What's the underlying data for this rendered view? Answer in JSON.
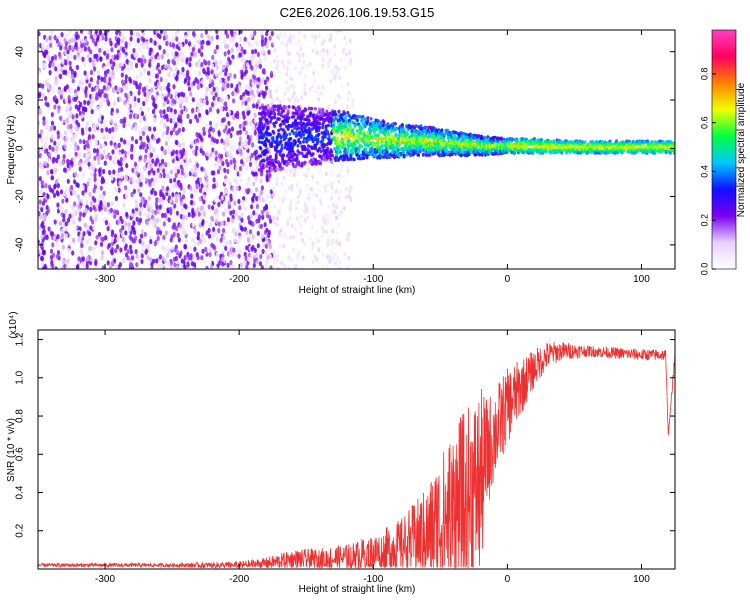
{
  "figure": {
    "title": "C2E6.2026.106.19.53.G15"
  },
  "colors": {
    "snr_line": "#ee3030",
    "axis": "#000000",
    "background": "#ffffff"
  },
  "chart_data": [
    {
      "type": "heatmap",
      "name": "spectrogram",
      "xlabel": "Height of straight line (km)",
      "ylabel": "Frequency (Hz)",
      "xlim": [
        -350,
        125
      ],
      "ylim": [
        -50,
        49
      ],
      "x_ticks": [
        -300,
        -200,
        -100,
        0,
        100
      ],
      "y_ticks": [
        -40,
        -20,
        0,
        20,
        40
      ],
      "colorbar": {
        "label": "Normalized spectral amplitude",
        "range": [
          0.0,
          0.98
        ],
        "ticks": [
          0.0,
          0.2,
          0.4,
          0.6,
          0.8
        ],
        "colormap": [
          "#ffffff",
          "#e8d0ff",
          "#7a00f0",
          "#1010ff",
          "#00c8ff",
          "#00ff40",
          "#f0ff00",
          "#ff8000",
          "#ff0060",
          "#ff40c0"
        ]
      },
      "signal_trace": {
        "description_points_height_km": [
          -180,
          -150,
          -120,
          -100,
          -80,
          -60,
          -40,
          -20,
          0,
          20,
          50,
          80,
          100,
          125
        ],
        "center_freq_hz": [
          4,
          5,
          5,
          4,
          3,
          3,
          2,
          1,
          1,
          1,
          0.5,
          0.5,
          0.5,
          0.5
        ],
        "spread_hz": [
          14,
          12,
          10,
          8,
          7,
          6,
          5,
          4,
          3,
          3,
          2.5,
          2.5,
          2.5,
          2.5
        ]
      }
    },
    {
      "type": "line",
      "name": "snr",
      "xlabel": "Height of straight line (km)",
      "ylabel": "SNR (10 * v/v)",
      "y_multiplier": "(x10⁴)",
      "xlim": [
        -350,
        125
      ],
      "ylim": [
        0,
        1.25
      ],
      "x_ticks": [
        -300,
        -200,
        -100,
        0,
        100
      ],
      "y_ticks": [
        0.2,
        0.4,
        0.6,
        0.8,
        1.0,
        1.2
      ],
      "x_tick_labels": [
        "-300",
        "-200",
        "-100",
        "0",
        "100"
      ],
      "y_tick_labels": [
        "0.2",
        "0.4",
        "0.6",
        "0.8",
        "1.0",
        "1.2"
      ],
      "envelope": {
        "x": [
          -350,
          -300,
          -250,
          -200,
          -180,
          -160,
          -140,
          -120,
          -100,
          -80,
          -60,
          -50,
          -40,
          -30,
          -20,
          -15,
          -10,
          0,
          10,
          20,
          30,
          40,
          60,
          80,
          100,
          118,
          120,
          125
        ],
        "y_mean": [
          0.02,
          0.02,
          0.02,
          0.02,
          0.03,
          0.05,
          0.05,
          0.06,
          0.08,
          0.12,
          0.18,
          0.25,
          0.3,
          0.35,
          0.45,
          0.6,
          0.7,
          0.85,
          0.95,
          1.05,
          1.12,
          1.14,
          1.14,
          1.13,
          1.12,
          1.12,
          0.7,
          1.12
        ],
        "y_spread": [
          0.01,
          0.01,
          0.01,
          0.02,
          0.03,
          0.05,
          0.06,
          0.07,
          0.1,
          0.14,
          0.25,
          0.35,
          0.45,
          0.5,
          0.5,
          0.3,
          0.25,
          0.2,
          0.15,
          0.1,
          0.07,
          0.05,
          0.03,
          0.03,
          0.03,
          0.03,
          0.0,
          0.03
        ]
      }
    }
  ]
}
